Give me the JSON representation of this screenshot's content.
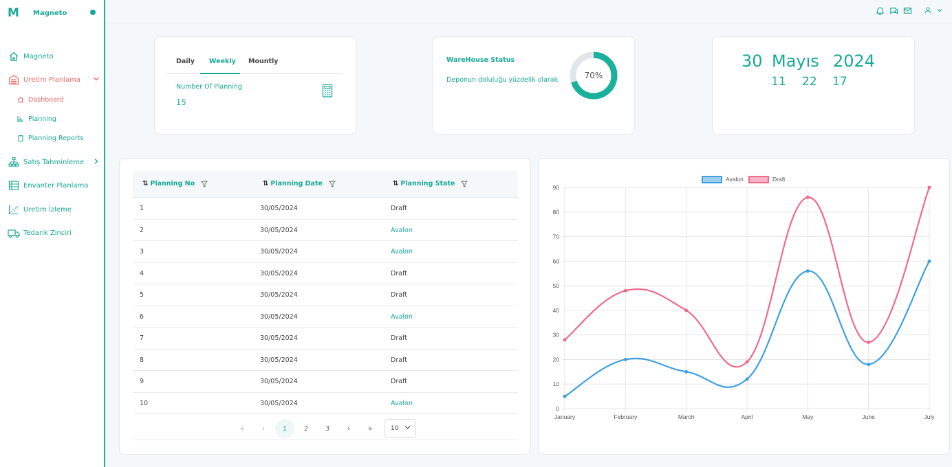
{
  "brand": {
    "logo": "M",
    "name": "Magneto"
  },
  "sidebar": {
    "items": [
      {
        "label": "Magneto",
        "icon": "home-icon"
      },
      {
        "label": "Uretim Planlama",
        "icon": "warehouse-icon",
        "active": true
      },
      {
        "label": "Satış Tahminleme",
        "icon": "sitemap-icon"
      },
      {
        "label": "Envanter Planlama",
        "icon": "table-icon"
      },
      {
        "label": "Uretim İzleme",
        "icon": "scatter-icon"
      },
      {
        "label": "Tedarik Zinciri",
        "icon": "truck-icon"
      }
    ],
    "subitems": [
      {
        "label": "Dashboard",
        "icon": "home-icon",
        "active": true
      },
      {
        "label": "Planning",
        "icon": "bar-chart-icon"
      },
      {
        "label": "Planning Reports",
        "icon": "clipboard-icon"
      }
    ]
  },
  "topbar": {
    "icons": [
      "bell-icon",
      "chat-icon",
      "mail-icon",
      "user-icon",
      "chevron-down-icon"
    ]
  },
  "planning_card": {
    "tabs": [
      "Daily",
      "Weekly",
      "Mountly"
    ],
    "active_tab": "Weekly",
    "stat_label": "Number Of Planning",
    "stat_value": "15"
  },
  "warehouse_card": {
    "title": "WareHouse Status",
    "description": "Deponun doluluğu yüzdelik olarak",
    "percent_label": "70%",
    "percent": 70
  },
  "date_card": {
    "day": "30",
    "month": "Mayıs",
    "year": "2024",
    "hour": "11",
    "minute": "22",
    "second": "17"
  },
  "table": {
    "columns": [
      "Planning No",
      "Planning Date",
      "Planning State"
    ],
    "rows": [
      {
        "no": "1",
        "date": "30/05/2024",
        "state": "Draft"
      },
      {
        "no": "2",
        "date": "30/05/2024",
        "state": "Avalon"
      },
      {
        "no": "3",
        "date": "30/05/2024",
        "state": "Avalon"
      },
      {
        "no": "4",
        "date": "30/05/2024",
        "state": "Draft"
      },
      {
        "no": "5",
        "date": "30/05/2024",
        "state": "Draft"
      },
      {
        "no": "6",
        "date": "30/05/2024",
        "state": "Avalon"
      },
      {
        "no": "7",
        "date": "30/05/2024",
        "state": "Draft"
      },
      {
        "no": "8",
        "date": "30/05/2024",
        "state": "Draft"
      },
      {
        "no": "9",
        "date": "30/05/2024",
        "state": "Draft"
      },
      {
        "no": "10",
        "date": "30/05/2024",
        "state": "Avalon"
      }
    ],
    "pager": {
      "first": "«",
      "prev": "‹",
      "next": "›",
      "last": "»",
      "pages": [
        "1",
        "2",
        "3"
      ],
      "current_page": "1",
      "page_size": "10"
    }
  },
  "chart_data": {
    "type": "line",
    "categories": [
      "January",
      "February",
      "March",
      "April",
      "May",
      "June",
      "July"
    ],
    "series": [
      {
        "name": "Avalon",
        "values": [
          5,
          20,
          15,
          12,
          56,
          18,
          60
        ],
        "color": "#3ea0e0"
      },
      {
        "name": "Draft",
        "values": [
          28,
          48,
          40,
          19,
          86,
          27,
          90
        ],
        "color": "#f06a8a"
      }
    ],
    "ylim": [
      0,
      90
    ],
    "yticks": [
      "0",
      "10",
      "20",
      "30",
      "40",
      "50",
      "60",
      "70",
      "80",
      "90"
    ],
    "grid": true,
    "legend": "top-center",
    "title": "",
    "xlabel": "",
    "ylabel": ""
  },
  "colors": {
    "accent": "#19a996",
    "active": "#f06a6a",
    "avalon": "#3ea0e0",
    "draft": "#f06a8a"
  }
}
